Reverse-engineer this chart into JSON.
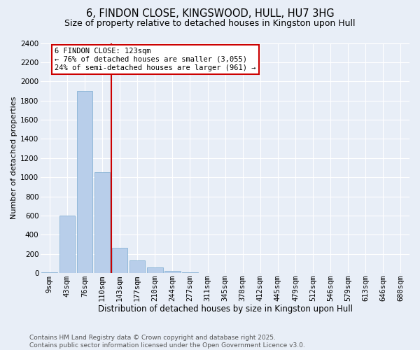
{
  "title_line1": "6, FINDON CLOSE, KINGSWOOD, HULL, HU7 3HG",
  "title_line2": "Size of property relative to detached houses in Kingston upon Hull",
  "xlabel": "Distribution of detached houses by size in Kingston upon Hull",
  "ylabel": "Number of detached properties",
  "bar_labels": [
    "9sqm",
    "43sqm",
    "76sqm",
    "110sqm",
    "143sqm",
    "177sqm",
    "210sqm",
    "244sqm",
    "277sqm",
    "311sqm",
    "345sqm",
    "378sqm",
    "412sqm",
    "445sqm",
    "479sqm",
    "512sqm",
    "546sqm",
    "579sqm",
    "613sqm",
    "646sqm",
    "680sqm"
  ],
  "bar_values": [
    5,
    600,
    1900,
    1050,
    260,
    130,
    60,
    20,
    5,
    2,
    1,
    0,
    0,
    0,
    0,
    0,
    0,
    0,
    0,
    0,
    0
  ],
  "bar_color": "#b8ceea",
  "bar_edge_color": "#7aaad0",
  "bg_color": "#e8eef7",
  "grid_color": "#ffffff",
  "vline_color": "#cc0000",
  "annotation_line1": "6 FINDON CLOSE: 123sqm",
  "annotation_line2": "← 76% of detached houses are smaller (3,055)",
  "annotation_line3": "24% of semi-detached houses are larger (961) →",
  "annotation_box_color": "#cc0000",
  "ylim": [
    0,
    2400
  ],
  "yticks": [
    0,
    200,
    400,
    600,
    800,
    1000,
    1200,
    1400,
    1600,
    1800,
    2000,
    2200,
    2400
  ],
  "footnote": "Contains HM Land Registry data © Crown copyright and database right 2025.\nContains public sector information licensed under the Open Government Licence v3.0.",
  "footnote_fontsize": 6.5,
  "title1_fontsize": 10.5,
  "title2_fontsize": 9,
  "xlabel_fontsize": 8.5,
  "ylabel_fontsize": 8,
  "tick_fontsize": 7.5,
  "annot_fontsize": 7.5
}
